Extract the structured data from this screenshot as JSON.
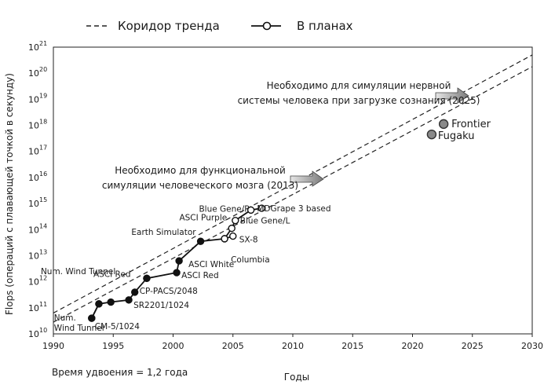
{
  "chart_data": {
    "type": "scatter",
    "xlabel": "Годы",
    "ylabel": "Flops (операций с плавающей точкой в секунду)",
    "xlim": [
      1990,
      2030
    ],
    "ylim_exp": [
      10,
      21
    ],
    "y_scale": "log10",
    "x_ticks": [
      "1990",
      "1995",
      "2000",
      "2005",
      "2010",
      "2015",
      "2020",
      "2025",
      "2030"
    ],
    "y_tick_base": "10",
    "y_tick_exponents": [
      "10",
      "11",
      "12",
      "13",
      "14",
      "15",
      "16",
      "17",
      "18",
      "19",
      "20",
      "21"
    ],
    "doubling_note": "Время удвоения = 1,2 года",
    "legend": [
      {
        "key": "trend",
        "label": "Коридор тренда"
      },
      {
        "key": "planned",
        "label": "В планах"
      }
    ],
    "trend_corridor": [
      {
        "name": "upper",
        "x": [
          1990,
          2030
        ],
        "y_exp": [
          10.8,
          20.7
        ]
      },
      {
        "name": "lower",
        "x": [
          1990,
          2030
        ],
        "y_exp": [
          10.45,
          20.25
        ]
      }
    ],
    "annotations": [
      {
        "lines": [
          "Необходимо для симуляции нервной",
          "системы человека при загрузке сознания (2025)"
        ],
        "x": 2025,
        "y_exp": 19.0
      },
      {
        "lines": [
          "Необходимо для функциональной",
          "симуляции человеческого мозга (2013)"
        ],
        "x": 2013,
        "y_exp": 16.0
      }
    ],
    "series": [
      {
        "name": "Historical path",
        "style": "filled-line",
        "points": [
          {
            "label": "CM-5/1024",
            "x": 1993.2,
            "y_exp": 10.6
          },
          {
            "label": "Num. Wind Tunnel",
            "x": 1993.8,
            "y_exp": 11.15
          },
          {
            "label": "",
            "x": 1994.8,
            "y_exp": 11.22
          },
          {
            "label": "SR2201/1024",
            "x": 1996.3,
            "y_exp": 11.3
          },
          {
            "label": "CP-PACS/2048",
            "x": 1996.8,
            "y_exp": 11.6
          },
          {
            "label": "",
            "x": 1997.8,
            "y_exp": 12.13
          },
          {
            "label": "ASCI Red",
            "x": 2000.3,
            "y_exp": 12.35
          },
          {
            "label": "ASCI White",
            "x": 2000.5,
            "y_exp": 12.8
          },
          {
            "label": "Earth Simulator",
            "x": 2002.3,
            "y_exp": 13.55
          },
          {
            "label": "",
            "x": 2004.3,
            "y_exp": 13.65
          }
        ]
      },
      {
        "name": "Early branch",
        "style": "filled-line",
        "points": [
          {
            "label": "Num. Wind Tunnel",
            "x": 1993.2,
            "y_exp": 10.6
          },
          {
            "label": "",
            "x": 1993.8,
            "y_exp": 11.15
          }
        ]
      },
      {
        "name": "Historical single",
        "style": "filled",
        "points": [
          {
            "label": "ASCI Red",
            "x": 1997.8,
            "y_exp": 12.13
          }
        ]
      },
      {
        "name": "Planned",
        "style": "open-line",
        "points": [
          {
            "label": "SX-8",
            "x": 2005.0,
            "y_exp": 13.75
          },
          {
            "label": "Columbia",
            "x": 2004.3,
            "y_exp": 13.65
          },
          {
            "label": "ASCI Purple",
            "x": 2004.9,
            "y_exp": 14.05
          },
          {
            "label": "Blue Gene/L",
            "x": 2005.2,
            "y_exp": 14.35
          },
          {
            "label": "Blue Gene/P",
            "x": 2006.5,
            "y_exp": 14.75
          },
          {
            "label": "MDGrape 3 based",
            "x": 2007.4,
            "y_exp": 14.82
          }
        ]
      },
      {
        "name": "Fugaku / Frontier",
        "style": "grey",
        "points": [
          {
            "label": "Frontier",
            "x": 2022.6,
            "y_exp": 18.05
          },
          {
            "label": "Fugaku",
            "x": 2021.6,
            "y_exp": 17.65
          }
        ]
      }
    ]
  }
}
